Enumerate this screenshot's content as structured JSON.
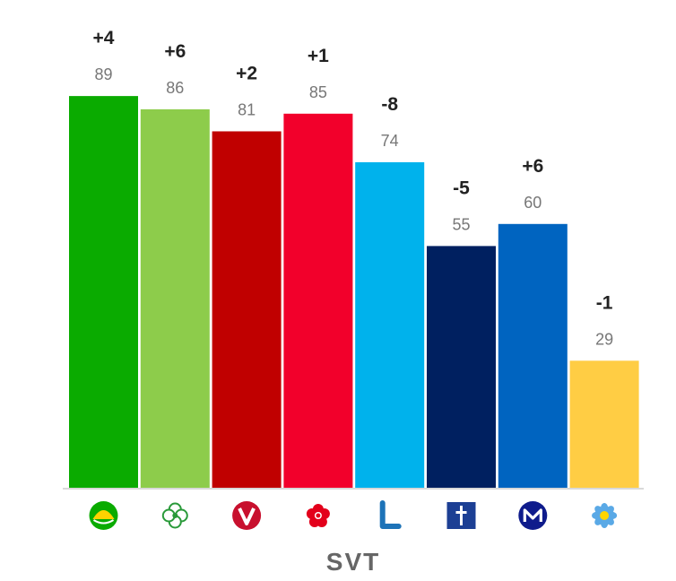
{
  "chart_data": {
    "type": "bar",
    "categories": [
      "MP",
      "C",
      "V",
      "S",
      "L",
      "KD",
      "M",
      "SD"
    ],
    "values": [
      89,
      86,
      81,
      85,
      74,
      55,
      60,
      29
    ],
    "changes": [
      "+4",
      "+6",
      "+2",
      "+1",
      "-8",
      "-5",
      "+6",
      "-1"
    ],
    "colors": [
      "#0aab00",
      "#8dcc4b",
      "#c00000",
      "#f2002b",
      "#00b2ec",
      "#002060",
      "#0064c0",
      "#ffcd44"
    ],
    "icons": [
      "mp-leaf-icon",
      "centerpartiet-clover-icon",
      "vansterpartiet-v-icon",
      "socialdemokraterna-rose-icon",
      "liberalerna-l-icon",
      "kristdemokraterna-icon",
      "moderaterna-m-icon",
      "sverigedemokraterna-flower-icon"
    ],
    "source": "SVT",
    "ylim": [
      0,
      100
    ],
    "grid": false
  }
}
